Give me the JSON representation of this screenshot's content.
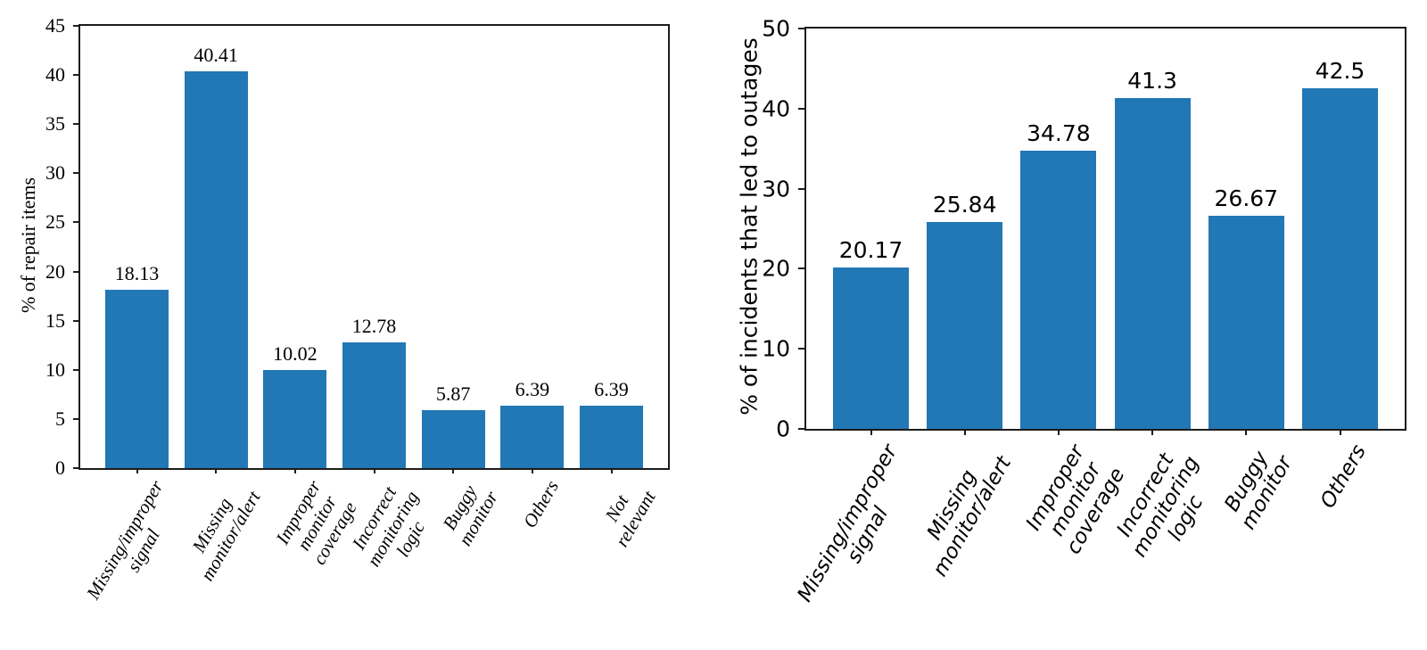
{
  "page": {
    "background_color": "#ffffff",
    "bar_color": "#2277b5",
    "axis_color": "#1c1c1c",
    "text_color": "#000000"
  },
  "chart_data": [
    {
      "id": "repair-items",
      "type": "bar",
      "title": "",
      "xlabel": "",
      "ylabel": "% of repair items",
      "ylim": [
        0,
        45
      ],
      "yticks": [
        "0",
        "5",
        "10",
        "15",
        "20",
        "25",
        "30",
        "35",
        "40",
        "45"
      ],
      "categories": [
        "Missing/improper\nsignal",
        "Missing\nmonitor/alert",
        "Improper monitor\ncoverage",
        "Incorrect\nmonitoring logic",
        "Buggy monitor",
        "Others",
        "Not relevant"
      ],
      "values": [
        18.13,
        40.41,
        10.02,
        12.78,
        5.87,
        6.39,
        6.39
      ],
      "value_labels": [
        "18.13",
        "40.41",
        "10.02",
        "12.78",
        "5.87",
        "6.39",
        "6.39"
      ],
      "grid": false,
      "legend": "none",
      "bar_color": "#2277b5",
      "tick_label_style": "italic"
    },
    {
      "id": "incidents-outages",
      "type": "bar",
      "title": "",
      "xlabel": "",
      "ylabel": "% of incidents that led to outages",
      "ylim": [
        0,
        50
      ],
      "yticks": [
        "0",
        "10",
        "20",
        "30",
        "40",
        "50"
      ],
      "categories": [
        "Missing/improper\nsignal",
        "Missing\nmonitor/alert",
        "Improper monitor\ncoverage",
        "Incorrect\nmonitoring logic",
        "Buggy monitor",
        "Others"
      ],
      "values": [
        20.17,
        25.84,
        34.78,
        41.3,
        26.67,
        42.5
      ],
      "value_labels": [
        "20.17",
        "25.84",
        "34.78",
        "41.3",
        "26.67",
        "42.5"
      ],
      "grid": false,
      "legend": "none",
      "bar_color": "#2277b5",
      "tick_label_style": "italic"
    }
  ]
}
